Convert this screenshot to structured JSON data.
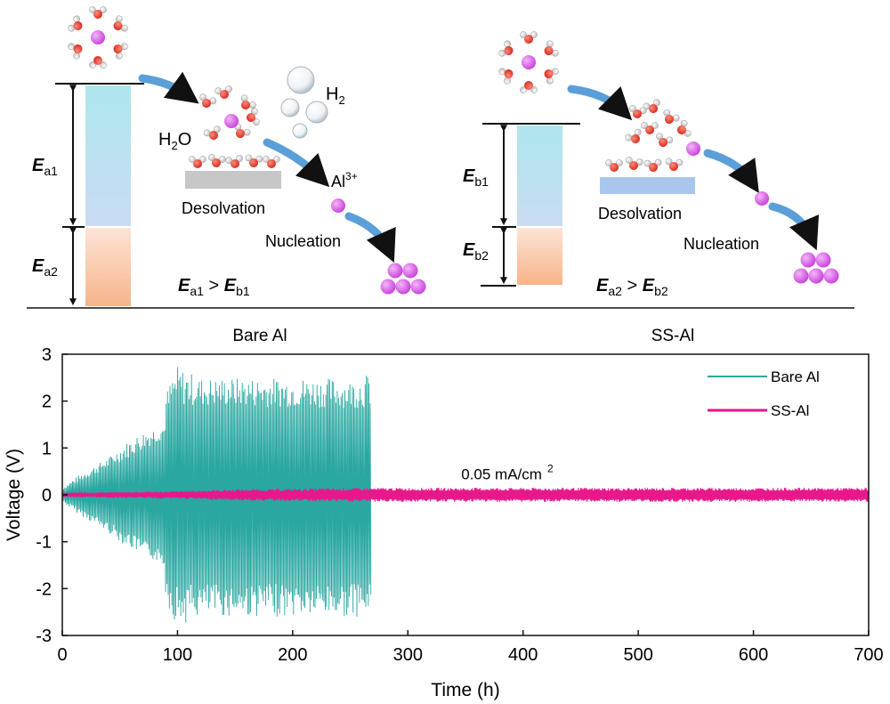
{
  "colors": {
    "bare": "#2aa7a0",
    "ss": "#e8178b",
    "ion": "#c93fd8",
    "oxygen": "#d42b1e",
    "hydrogen": "#eeeeee",
    "arrow": "#5b9fd8",
    "bar_a1_top": "#aee6ee",
    "bar_a1_bottom": "#c9dcf3",
    "bar_a2_top": "#fde4d6",
    "bar_a2_bottom": "#f7b48a",
    "substrate_bare": "#c7c7c7",
    "substrate_ss": "#a9c6ee"
  },
  "schematic": {
    "left": {
      "energy_top_label": "E",
      "energy_top_sub": "a1",
      "energy_bottom_label": "E",
      "energy_bottom_sub": "a2",
      "water_label": "H",
      "water_sub": "2",
      "water_tail": "O",
      "h2_label": "H",
      "h2_sub": "2",
      "ion_label": "Al",
      "ion_sup": "3+",
      "desolvation": "Desolvation",
      "nucleation": "Nucleation",
      "relation": {
        "lhs": "E",
        "lhs_sub": "a1",
        "op": " > ",
        "rhs": "E",
        "rhs_sub": "b1"
      },
      "caption": "Bare Al"
    },
    "right": {
      "energy_top_label": "E",
      "energy_top_sub": "b1",
      "energy_bottom_label": "E",
      "energy_bottom_sub": "b2",
      "desolvation": "Desolvation",
      "nucleation": "Nucleation",
      "relation": {
        "lhs": "E",
        "lhs_sub": "a2",
        "op": " > ",
        "rhs": "E",
        "rhs_sub": "b2"
      },
      "caption": "SS-Al"
    }
  },
  "chart_data": {
    "type": "line",
    "xlabel": "Time (h)",
    "ylabel": "Voltage (V)",
    "xlim": [
      0,
      700
    ],
    "ylim": [
      -3,
      3
    ],
    "xticks": [
      0,
      100,
      200,
      300,
      400,
      500,
      600,
      700
    ],
    "yticks": [
      -3,
      -2,
      -1,
      0,
      1,
      2,
      3
    ],
    "annotation": {
      "text": "0.05 mA/cm",
      "sup": "2",
      "x": 395,
      "y": 0.45
    },
    "legend_position": "top-right",
    "series": [
      {
        "name": "Bare Al",
        "x_range": [
          0,
          268
        ],
        "upper_envelope": [
          [
            0,
            0.15
          ],
          [
            10,
            0.35
          ],
          [
            20,
            0.5
          ],
          [
            30,
            0.65
          ],
          [
            40,
            0.8
          ],
          [
            50,
            1.0
          ],
          [
            60,
            1.2
          ],
          [
            70,
            1.35
          ],
          [
            80,
            1.45
          ],
          [
            88,
            1.5
          ],
          [
            90,
            2.2
          ],
          [
            100,
            2.75
          ],
          [
            120,
            2.5
          ],
          [
            150,
            2.5
          ],
          [
            180,
            2.5
          ],
          [
            200,
            2.5
          ],
          [
            230,
            2.5
          ],
          [
            250,
            2.45
          ],
          [
            266,
            2.6
          ],
          [
            268,
            2.6
          ]
        ],
        "lower_envelope": [
          [
            0,
            -0.15
          ],
          [
            10,
            -0.35
          ],
          [
            20,
            -0.5
          ],
          [
            30,
            -0.65
          ],
          [
            40,
            -0.8
          ],
          [
            50,
            -1.0
          ],
          [
            60,
            -1.15
          ],
          [
            70,
            -1.3
          ],
          [
            80,
            -1.4
          ],
          [
            88,
            -1.5
          ],
          [
            90,
            -2.3
          ],
          [
            100,
            -2.8
          ],
          [
            120,
            -2.6
          ],
          [
            150,
            -2.6
          ],
          [
            180,
            -2.6
          ],
          [
            200,
            -2.6
          ],
          [
            230,
            -2.6
          ],
          [
            250,
            -2.6
          ],
          [
            268,
            -2.6
          ]
        ],
        "band_upper": [
          [
            0,
            0.1
          ],
          [
            50,
            0.7
          ],
          [
            88,
            1.2
          ],
          [
            95,
            1.9
          ],
          [
            268,
            1.85
          ]
        ],
        "band_lower": [
          [
            0,
            -0.1
          ],
          [
            50,
            -0.7
          ],
          [
            88,
            -1.2
          ],
          [
            95,
            -1.9
          ],
          [
            268,
            -1.9
          ]
        ]
      },
      {
        "name": "SS-Al",
        "x_range": [
          0,
          700
        ],
        "upper_envelope": [
          [
            0,
            0.05
          ],
          [
            100,
            0.08
          ],
          [
            150,
            0.12
          ],
          [
            260,
            0.15
          ],
          [
            300,
            0.15
          ],
          [
            700,
            0.15
          ]
        ],
        "lower_envelope": [
          [
            0,
            -0.05
          ],
          [
            100,
            -0.08
          ],
          [
            150,
            -0.12
          ],
          [
            260,
            -0.15
          ],
          [
            300,
            -0.15
          ],
          [
            700,
            -0.15
          ]
        ]
      }
    ]
  }
}
